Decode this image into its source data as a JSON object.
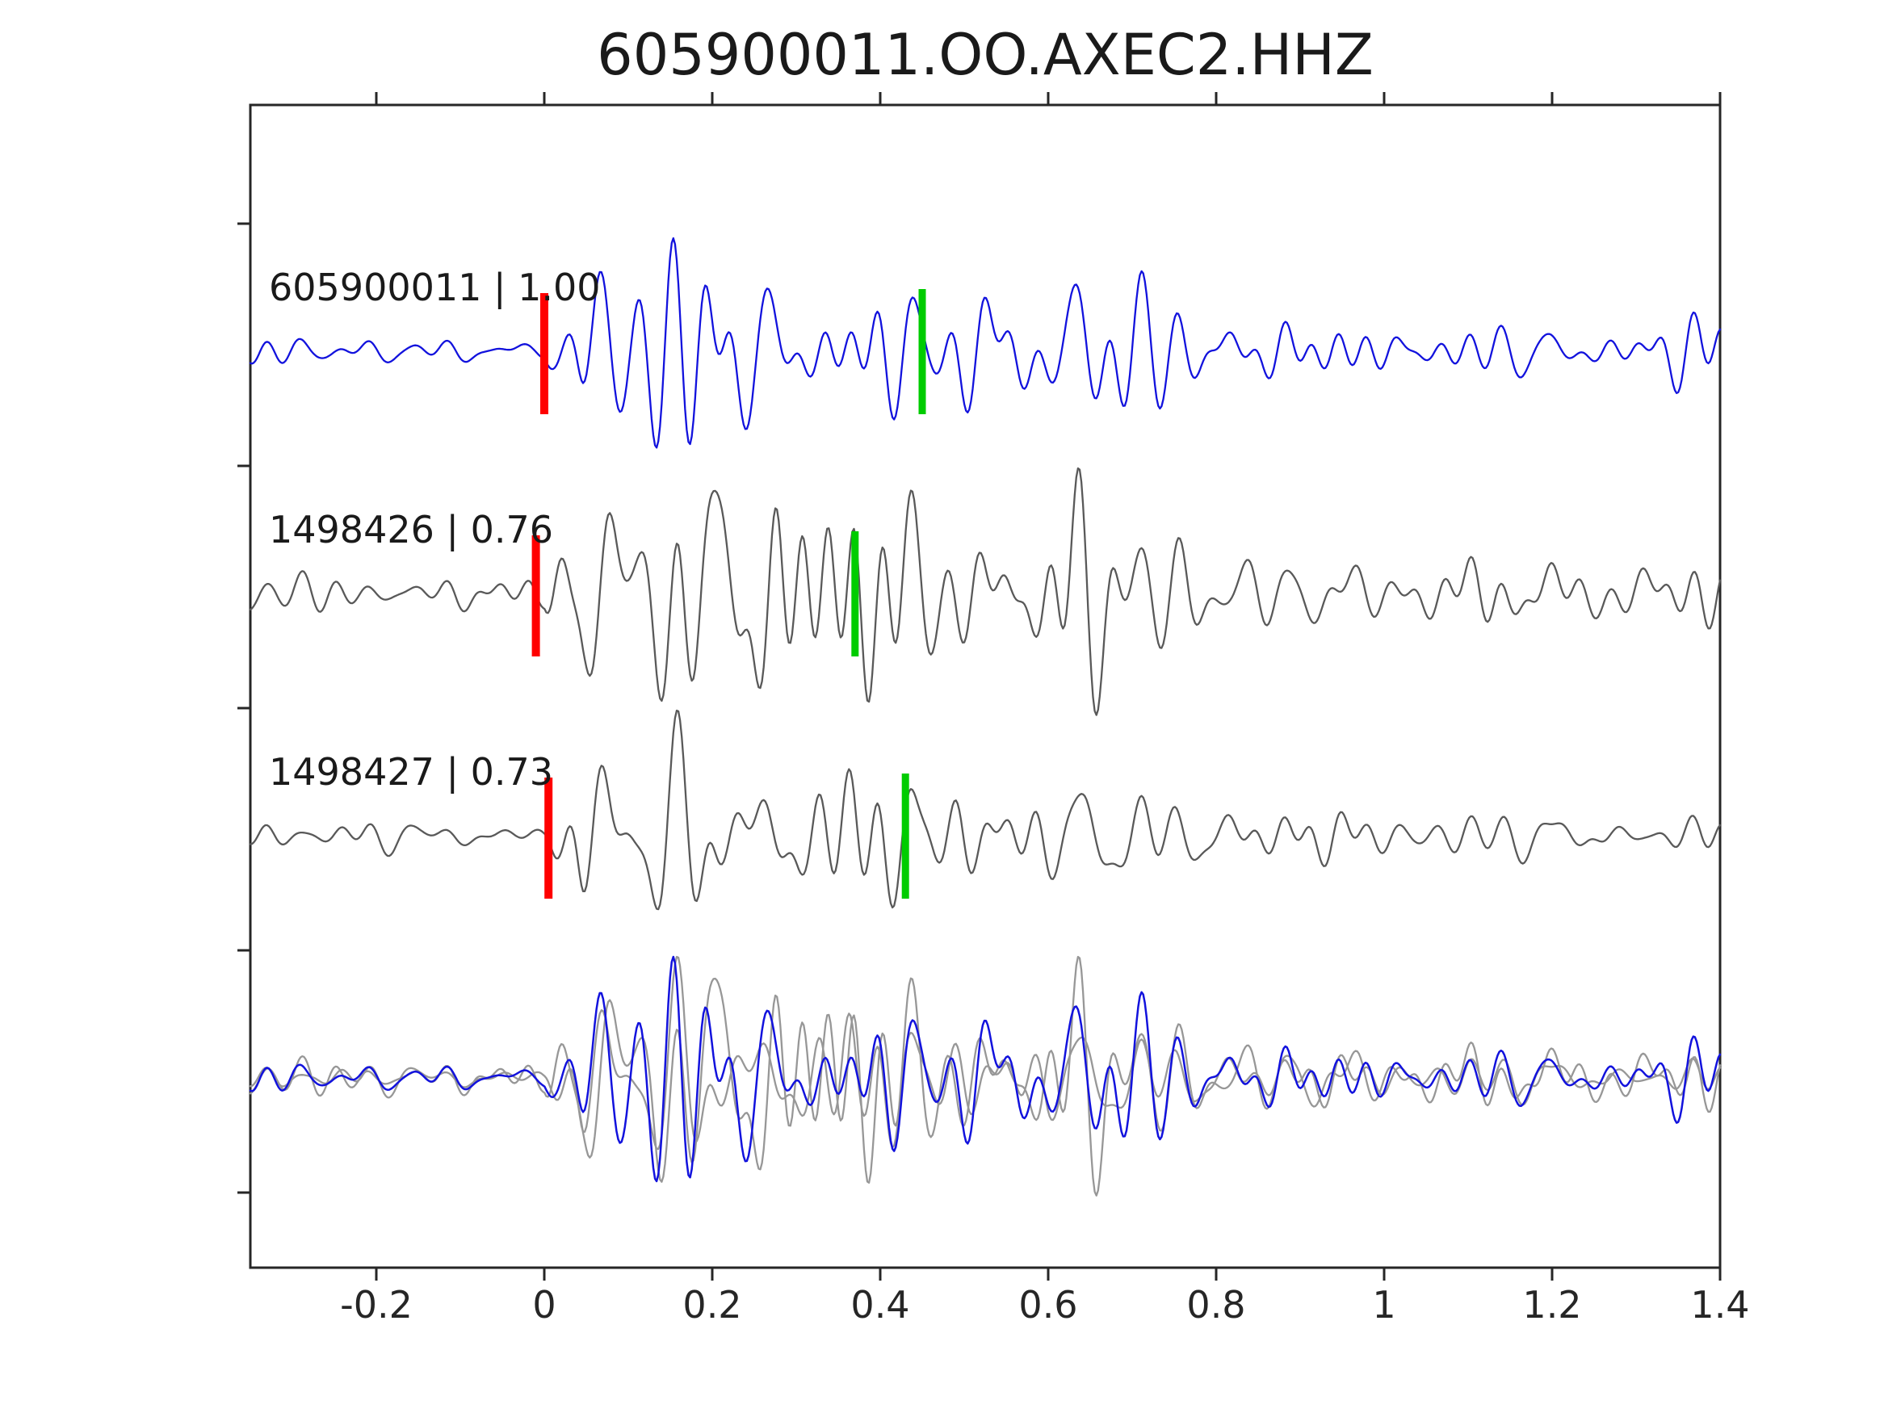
{
  "colors": {
    "background": "#ffffff",
    "axis": "#262626",
    "text": "#1a1a1a",
    "blue": "#1212dd",
    "gray": "#595959",
    "overlay_gray": "#979797",
    "red_pick": "#ff0000",
    "green_pick": "#00cc00"
  },
  "chart_data": {
    "type": "line",
    "title": "605900011.OO.AXEC2.HHZ",
    "xlabel": "",
    "ylabel": "",
    "xlim": [
      -0.35,
      1.4
    ],
    "grid": false,
    "legend": "none",
    "x_ticks": [
      -0.2,
      0,
      0.2,
      0.4,
      0.6,
      0.8,
      1,
      1.2,
      1.4
    ],
    "x_tick_labels": [
      "-0.2",
      "0",
      "0.2",
      "0.4",
      "0.6",
      "0.8",
      "1",
      "1.2",
      "1.4"
    ],
    "traces": [
      {
        "id": "605900011",
        "label": "605900011 | 1.00",
        "correlation": 1.0,
        "role": "template",
        "color_key": "blue",
        "red_pick": 0.0,
        "green_pick": 0.45,
        "seed": 11
      },
      {
        "id": "1498426",
        "label": "1498426 | 0.76",
        "correlation": 0.76,
        "role": "detection",
        "color_key": "gray",
        "red_pick": -0.01,
        "green_pick": 0.37,
        "seed": 26
      },
      {
        "id": "1498427",
        "label": "1498427 | 0.73",
        "correlation": 0.73,
        "role": "detection",
        "color_key": "gray",
        "red_pick": 0.005,
        "green_pick": 0.43,
        "seed": 27
      }
    ],
    "overlay_row": {
      "gray_members": [
        1,
        2
      ],
      "blue_member": 0
    },
    "synthesis": {
      "shared_seed": 9001,
      "n_components": 26,
      "freq_min": 8,
      "freq_max": 34,
      "samples": 880,
      "envelope": {
        "noise_level": 0.13,
        "attack": 0.045,
        "plateau_end": 0.28,
        "decay": 2.4,
        "floor": 0.16,
        "secondary_time": 0.62,
        "secondary_width": 0.09,
        "secondary_amp": 0.18
      }
    }
  }
}
